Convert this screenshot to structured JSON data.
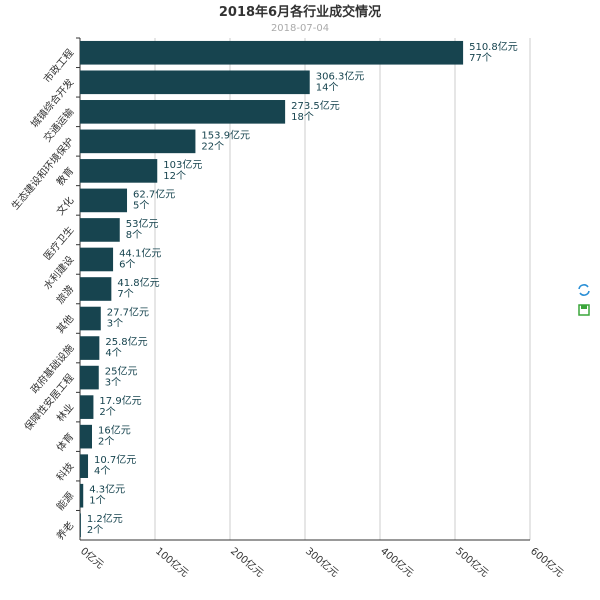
{
  "chart_data": {
    "type": "hbar",
    "title": "2018年6月各行业成交情况",
    "subtitle": "2018-07-04",
    "categories": [
      "市政工程",
      "城镇综合开发",
      "交通运输",
      "生态建设和环境保护",
      "教育",
      "文化",
      "医疗卫生",
      "水利建设",
      "旅游",
      "其他",
      "政府基础设施",
      "保障性安居工程",
      "林业",
      "体育",
      "科技",
      "能源",
      "养老"
    ],
    "values": [
      510.8,
      306.3,
      273.5,
      153.9,
      103,
      62.7,
      53,
      44.1,
      41.8,
      27.7,
      25.8,
      25,
      17.9,
      16,
      10.7,
      4.3,
      1.2
    ],
    "value_labels": [
      "510.8亿元",
      "306.3亿元",
      "273.5亿元",
      "153.9亿元",
      "103亿元",
      "62.7亿元",
      "53亿元",
      "44.1亿元",
      "41.8亿元",
      "27.7亿元",
      "25.8亿元",
      "25亿元",
      "17.9亿元",
      "16亿元",
      "10.7亿元",
      "4.3亿元",
      "1.2亿元"
    ],
    "count_labels": [
      "77个",
      "14个",
      "18个",
      "22个",
      "12个",
      "5个",
      "8个",
      "6个",
      "7个",
      "3个",
      "4个",
      "3个",
      "2个",
      "2个",
      "4个",
      "1个",
      "2个"
    ],
    "color": "#17444f",
    "xlim": [
      0,
      600
    ],
    "xticks": [
      {
        "value": 0,
        "label": "0亿元"
      },
      {
        "value": 100,
        "label": "100亿元"
      },
      {
        "value": 200,
        "label": "200亿元"
      },
      {
        "value": 300,
        "label": "300亿元"
      },
      {
        "value": 400,
        "label": "400亿元"
      },
      {
        "value": 500,
        "label": "500亿元"
      },
      {
        "value": 600,
        "label": "600亿元"
      }
    ],
    "grid": true
  }
}
